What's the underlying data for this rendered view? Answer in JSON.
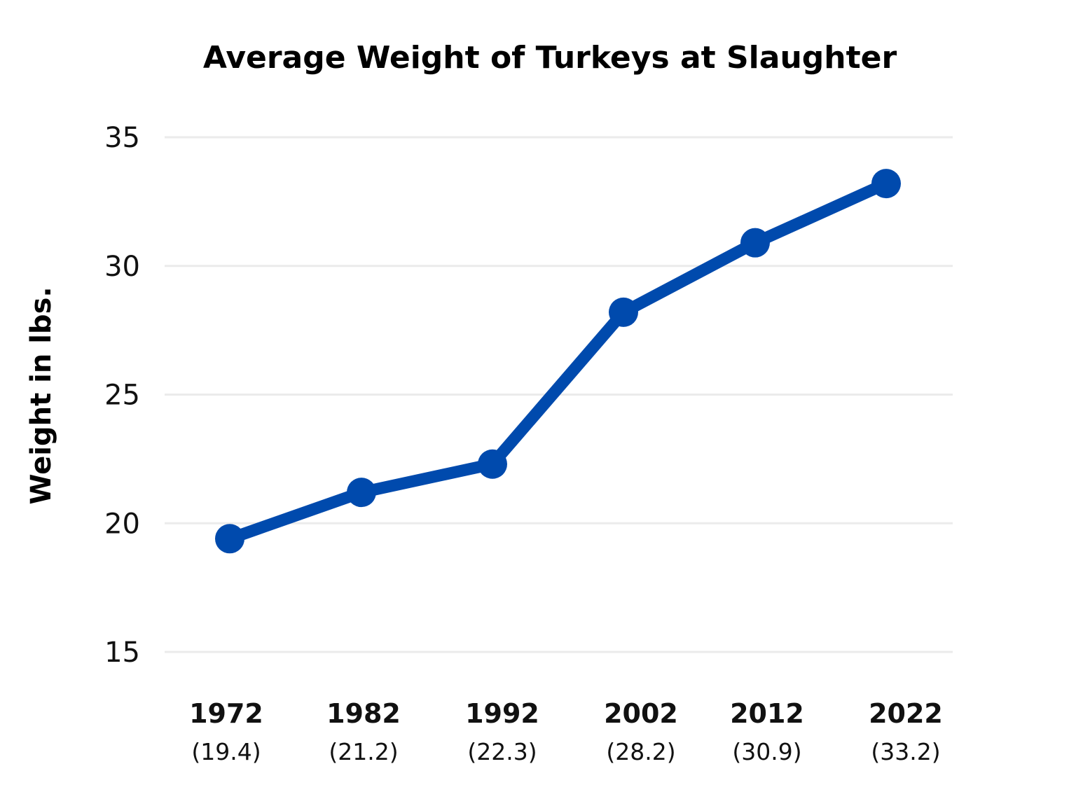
{
  "chart_data": {
    "type": "line",
    "title": "Average Weight of Turkeys at Slaughter",
    "xlabel": "",
    "ylabel": "Weight in lbs.",
    "categories": [
      "1972",
      "1982",
      "1992",
      "2002",
      "2012",
      "2022"
    ],
    "value_labels": [
      "(19.4)",
      "(21.2)",
      "(22.3)",
      "(28.2)",
      "(30.9)",
      "(33.2)"
    ],
    "values": [
      19.4,
      21.2,
      22.3,
      28.2,
      30.9,
      33.2
    ],
    "ylim": [
      15,
      35
    ],
    "yticks": [
      15,
      20,
      25,
      30,
      35
    ],
    "grid": true,
    "legend": "none",
    "colors": {
      "line": "#004AAD",
      "grid": "#ebebeb"
    }
  }
}
